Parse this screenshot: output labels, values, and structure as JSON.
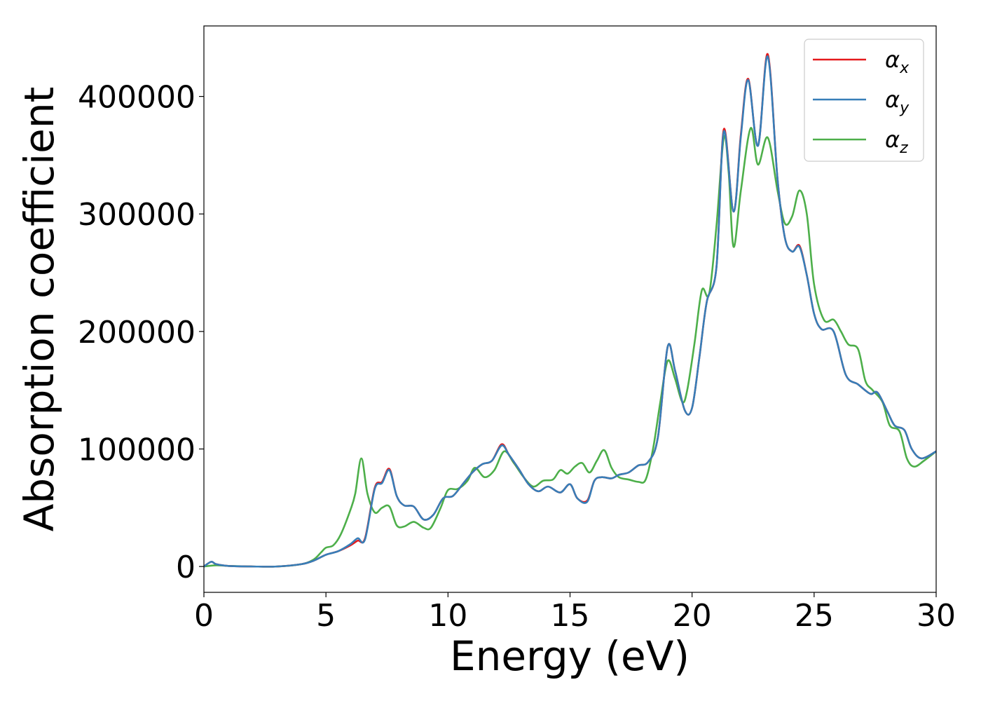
{
  "chart_data": {
    "type": "line",
    "title": "",
    "xlabel": "Energy (eV)",
    "ylabel": "Absorption coefficient",
    "xlim": [
      0,
      30
    ],
    "ylim": [
      -22000,
      460000
    ],
    "xticks": [
      0,
      5,
      10,
      15,
      20,
      25,
      30
    ],
    "xtick_labels": [
      "0",
      "5",
      "10",
      "15",
      "20",
      "25",
      "30"
    ],
    "yticks": [
      0,
      100000,
      200000,
      300000,
      400000
    ],
    "ytick_labels": [
      "0",
      "100000",
      "200000",
      "300000",
      "400000"
    ],
    "grid": false,
    "legend_position": "top-right",
    "series": [
      {
        "name": "αx",
        "legend_base": "α",
        "legend_sub": "x",
        "color": "#e41a1c",
        "x": [
          0,
          0.3,
          0.5,
          1,
          2,
          3,
          4,
          4.5,
          5,
          5.5,
          6,
          6.3,
          6.6,
          7.0,
          7.3,
          7.6,
          7.9,
          8.2,
          8.6,
          9.0,
          9.4,
          9.8,
          10.2,
          10.6,
          11.0,
          11.4,
          11.8,
          12.2,
          12.5,
          12.9,
          13.3,
          13.7,
          14.1,
          14.6,
          15.0,
          15.3,
          15.7,
          16.0,
          16.3,
          16.7,
          17.0,
          17.4,
          17.8,
          18.2,
          18.6,
          19.0,
          19.3,
          19.7,
          20.0,
          20.3,
          20.6,
          21.0,
          21.3,
          21.7,
          22.0,
          22.3,
          22.7,
          23.1,
          23.5,
          23.8,
          24.1,
          24.4,
          24.7,
          25.0,
          25.3,
          25.8,
          26.3,
          26.8,
          27.3,
          27.6,
          28.0,
          28.3,
          28.7,
          29.0,
          29.4,
          30
        ],
        "y": [
          0,
          4000,
          2000,
          500,
          0,
          0,
          2000,
          5000,
          10000,
          13000,
          18000,
          22000,
          24000,
          67000,
          72000,
          83000,
          60000,
          52000,
          51000,
          40000,
          44000,
          58000,
          60000,
          70000,
          80000,
          87000,
          90000,
          104000,
          95000,
          83000,
          70000,
          64000,
          68000,
          63000,
          70000,
          58000,
          56000,
          73000,
          76000,
          75000,
          78000,
          80000,
          86000,
          89000,
          110000,
          187000,
          167000,
          133000,
          135000,
          178000,
          225000,
          255000,
          372000,
          302000,
          368000,
          415000,
          358000,
          436000,
          330000,
          280000,
          268000,
          273000,
          248000,
          215000,
          202000,
          200000,
          163000,
          155000,
          147000,
          148000,
          132000,
          120000,
          116000,
          100000,
          92000,
          98000
        ]
      },
      {
        "name": "αy",
        "legend_base": "α",
        "legend_sub": "y",
        "color": "#377eb8",
        "x": [
          0,
          0.3,
          0.5,
          1,
          2,
          3,
          4,
          4.5,
          5,
          5.5,
          6,
          6.3,
          6.6,
          7.0,
          7.3,
          7.6,
          7.9,
          8.2,
          8.6,
          9.0,
          9.4,
          9.8,
          10.2,
          10.6,
          11.0,
          11.4,
          11.8,
          12.2,
          12.5,
          12.9,
          13.3,
          13.7,
          14.1,
          14.6,
          15.0,
          15.3,
          15.7,
          16.0,
          16.3,
          16.7,
          17.0,
          17.4,
          17.8,
          18.2,
          18.6,
          19.0,
          19.3,
          19.7,
          20.0,
          20.3,
          20.6,
          21.0,
          21.3,
          21.7,
          22.0,
          22.3,
          22.7,
          23.1,
          23.5,
          23.8,
          24.1,
          24.4,
          24.7,
          25.0,
          25.3,
          25.8,
          26.3,
          26.8,
          27.3,
          27.6,
          28.0,
          28.3,
          28.7,
          29.0,
          29.4,
          30
        ],
        "y": [
          0,
          4000,
          2000,
          500,
          0,
          0,
          2000,
          5000,
          10000,
          13000,
          19000,
          24000,
          23000,
          66000,
          71000,
          82000,
          60000,
          52000,
          51000,
          40000,
          44000,
          58000,
          60000,
          70000,
          80000,
          87000,
          90000,
          103000,
          95000,
          83000,
          70000,
          64000,
          68000,
          63000,
          70000,
          58000,
          55000,
          73000,
          76000,
          75000,
          78000,
          80000,
          86000,
          89000,
          110000,
          187000,
          167000,
          133000,
          135000,
          178000,
          225000,
          255000,
          370000,
          302000,
          366000,
          414000,
          358000,
          434000,
          330000,
          280000,
          268000,
          272000,
          248000,
          215000,
          202000,
          200000,
          163000,
          155000,
          147000,
          148000,
          132000,
          120000,
          116000,
          100000,
          92000,
          98000
        ]
      },
      {
        "name": "αz",
        "legend_base": "α",
        "legend_sub": "z",
        "color": "#4daf4a",
        "x": [
          0,
          0.5,
          1,
          2,
          3,
          4,
          4.5,
          4.8,
          5.0,
          5.3,
          5.6,
          6.0,
          6.2,
          6.45,
          6.7,
          7.0,
          7.3,
          7.6,
          7.9,
          8.2,
          8.6,
          9.0,
          9.3,
          9.7,
          10.0,
          10.4,
          10.8,
          11.1,
          11.5,
          11.9,
          12.3,
          12.7,
          13.1,
          13.5,
          13.9,
          14.3,
          14.6,
          14.9,
          15.2,
          15.5,
          15.8,
          16.1,
          16.4,
          16.7,
          17.0,
          17.4,
          17.8,
          18.1,
          18.4,
          18.7,
          19.0,
          19.3,
          19.6,
          19.8,
          20.1,
          20.4,
          20.7,
          21.0,
          21.3,
          21.5,
          21.7,
          22.0,
          22.4,
          22.7,
          23.1,
          23.5,
          23.8,
          24.1,
          24.4,
          24.7,
          25.0,
          25.4,
          25.8,
          26.1,
          26.4,
          26.8,
          27.1,
          27.4,
          27.8,
          28.1,
          28.5,
          28.8,
          29.1,
          29.5,
          30
        ],
        "y": [
          0,
          1000,
          500,
          0,
          0,
          2000,
          6000,
          12000,
          16000,
          18000,
          27000,
          48000,
          62000,
          92000,
          62000,
          46000,
          50000,
          51000,
          35000,
          34000,
          38000,
          33000,
          33000,
          50000,
          65000,
          66000,
          73000,
          84000,
          76000,
          82000,
          98000,
          88000,
          76000,
          68000,
          73000,
          74000,
          82000,
          79000,
          85000,
          88000,
          80000,
          90000,
          99000,
          84000,
          76000,
          74000,
          72000,
          74000,
          100000,
          140000,
          175000,
          160000,
          140000,
          150000,
          190000,
          235000,
          232000,
          290000,
          365000,
          335000,
          272000,
          320000,
          373000,
          342000,
          365000,
          320000,
          292000,
          298000,
          320000,
          300000,
          240000,
          210000,
          210000,
          200000,
          189000,
          185000,
          158000,
          150000,
          140000,
          120000,
          115000,
          92000,
          85000,
          90000,
          98000
        ]
      }
    ]
  }
}
